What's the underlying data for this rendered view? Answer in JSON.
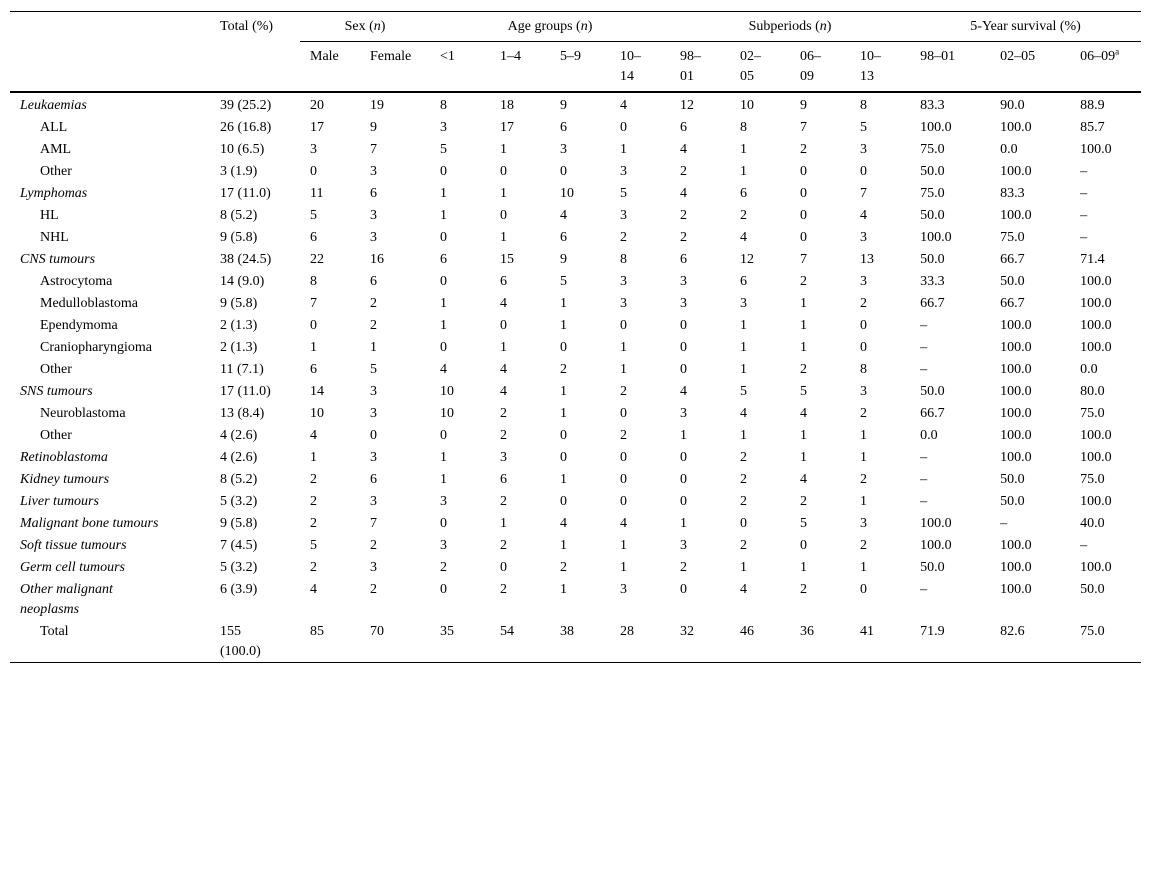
{
  "table": {
    "corner": "",
    "total_header": "Total (%)",
    "groups": [
      {
        "parts": [
          {
            "text": "Sex ("
          },
          {
            "text": "n",
            "italic": true
          },
          {
            "text": ")"
          }
        ],
        "span": 2
      },
      {
        "parts": [
          {
            "text": "Age groups ("
          },
          {
            "text": "n",
            "italic": true
          },
          {
            "text": ")"
          }
        ],
        "span": 4
      },
      {
        "parts": [
          {
            "text": "Subperiods ("
          },
          {
            "text": "n",
            "italic": true
          },
          {
            "text": ")"
          }
        ],
        "span": 4
      },
      {
        "parts": [
          {
            "text": "5-Year survival (%)"
          }
        ],
        "span": 3
      }
    ],
    "subheaders": [
      {
        "text": "Male"
      },
      {
        "text": "Female"
      },
      {
        "text": "<1",
        "narrow": true
      },
      {
        "text": "1–4",
        "narrow": true
      },
      {
        "text": "5–9",
        "narrow": true
      },
      {
        "text": "10–14",
        "narrow": true
      },
      {
        "text": "98–01",
        "narrow": true
      },
      {
        "text": "02–05",
        "narrow": true
      },
      {
        "text": "06–09",
        "narrow": true
      },
      {
        "text": "10–13",
        "narrow": true
      },
      {
        "text": "98–01"
      },
      {
        "text": "02–05"
      },
      {
        "text": "06–09",
        "sup": "a"
      }
    ],
    "rows": [
      {
        "label": "Leukaemias",
        "italic": true,
        "cells": [
          "39 (25.2)",
          "20",
          "19",
          "8",
          "18",
          "9",
          "4",
          "12",
          "10",
          "9",
          "8",
          "83.3",
          "90.0",
          "88.9"
        ]
      },
      {
        "label": "ALL",
        "italic": false,
        "cells": [
          "26 (16.8)",
          "17",
          "9",
          "3",
          "17",
          "6",
          "0",
          "6",
          "8",
          "7",
          "5",
          "100.0",
          "100.0",
          "85.7"
        ]
      },
      {
        "label": "AML",
        "italic": false,
        "cells": [
          "10 (6.5)",
          "3",
          "7",
          "5",
          "1",
          "3",
          "1",
          "4",
          "1",
          "2",
          "3",
          "75.0",
          "0.0",
          "100.0"
        ]
      },
      {
        "label": "Other",
        "italic": false,
        "cells": [
          "3 (1.9)",
          "0",
          "3",
          "0",
          "0",
          "0",
          "3",
          "2",
          "1",
          "0",
          "0",
          "50.0",
          "100.0",
          "–"
        ]
      },
      {
        "label": "Lymphomas",
        "italic": true,
        "cells": [
          "17 (11.0)",
          "11",
          "6",
          "1",
          "1",
          "10",
          "5",
          "4",
          "6",
          "0",
          "7",
          "75.0",
          "83.3",
          "–"
        ]
      },
      {
        "label": "HL",
        "italic": false,
        "cells": [
          "8 (5.2)",
          "5",
          "3",
          "1",
          "0",
          "4",
          "3",
          "2",
          "2",
          "0",
          "4",
          "50.0",
          "100.0",
          "–"
        ]
      },
      {
        "label": "NHL",
        "italic": false,
        "cells": [
          "9 (5.8)",
          "6",
          "3",
          "0",
          "1",
          "6",
          "2",
          "2",
          "4",
          "0",
          "3",
          "100.0",
          "75.0",
          "–"
        ]
      },
      {
        "label": "CNS tumours",
        "italic": true,
        "cells": [
          "38 (24.5)",
          "22",
          "16",
          "6",
          "15",
          "9",
          "8",
          "6",
          "12",
          "7",
          "13",
          "50.0",
          "66.7",
          "71.4"
        ]
      },
      {
        "label": "Astrocytoma",
        "italic": false,
        "cells": [
          "14 (9.0)",
          "8",
          "6",
          "0",
          "6",
          "5",
          "3",
          "3",
          "6",
          "2",
          "3",
          "33.3",
          "50.0",
          "100.0"
        ]
      },
      {
        "label": "Medulloblastoma",
        "italic": false,
        "cells": [
          "9 (5.8)",
          "7",
          "2",
          "1",
          "4",
          "1",
          "3",
          "3",
          "3",
          "1",
          "2",
          "66.7",
          "66.7",
          "100.0"
        ]
      },
      {
        "label": "Ependymoma",
        "italic": false,
        "cells": [
          "2 (1.3)",
          "0",
          "2",
          "1",
          "0",
          "1",
          "0",
          "0",
          "1",
          "1",
          "0",
          "–",
          "100.0",
          "100.0"
        ]
      },
      {
        "label": "Craniopharyngioma",
        "italic": false,
        "cells": [
          "2 (1.3)",
          "1",
          "1",
          "0",
          "1",
          "0",
          "1",
          "0",
          "1",
          "1",
          "0",
          "–",
          "100.0",
          "100.0"
        ]
      },
      {
        "label": "Other",
        "italic": false,
        "cells": [
          "11 (7.1)",
          "6",
          "5",
          "4",
          "4",
          "2",
          "1",
          "0",
          "1",
          "2",
          "8",
          "–",
          "100.0",
          "0.0"
        ]
      },
      {
        "label": "SNS tumours",
        "italic": true,
        "cells": [
          "17 (11.0)",
          "14",
          "3",
          "10",
          "4",
          "1",
          "2",
          "4",
          "5",
          "5",
          "3",
          "50.0",
          "100.0",
          "80.0"
        ]
      },
      {
        "label": "Neuroblastoma",
        "italic": false,
        "cells": [
          "13 (8.4)",
          "10",
          "3",
          "10",
          "2",
          "1",
          "0",
          "3",
          "4",
          "4",
          "2",
          "66.7",
          "100.0",
          "75.0"
        ]
      },
      {
        "label": "Other",
        "italic": false,
        "cells": [
          "4 (2.6)",
          "4",
          "0",
          "0",
          "2",
          "0",
          "2",
          "1",
          "1",
          "1",
          "1",
          "0.0",
          "100.0",
          "100.0"
        ]
      },
      {
        "label": "Retinoblastoma",
        "italic": true,
        "cells": [
          "4 (2.6)",
          "1",
          "3",
          "1",
          "3",
          "0",
          "0",
          "0",
          "2",
          "1",
          "1",
          "–",
          "100.0",
          "100.0"
        ]
      },
      {
        "label": "Kidney tumours",
        "italic": true,
        "cells": [
          "8 (5.2)",
          "2",
          "6",
          "1",
          "6",
          "1",
          "0",
          "0",
          "2",
          "4",
          "2",
          "–",
          "50.0",
          "75.0"
        ]
      },
      {
        "label": "Liver tumours",
        "italic": true,
        "cells": [
          "5 (3.2)",
          "2",
          "3",
          "3",
          "2",
          "0",
          "0",
          "0",
          "2",
          "2",
          "1",
          "–",
          "50.0",
          "100.0"
        ]
      },
      {
        "label": "Malignant bone tumours",
        "italic": true,
        "cells": [
          "9 (5.8)",
          "2",
          "7",
          "0",
          "1",
          "4",
          "4",
          "1",
          "0",
          "5",
          "3",
          "100.0",
          "–",
          "40.0"
        ]
      },
      {
        "label": "Soft tissue tumours",
        "italic": true,
        "cells": [
          "7 (4.5)",
          "5",
          "2",
          "3",
          "2",
          "1",
          "1",
          "3",
          "2",
          "0",
          "2",
          "100.0",
          "100.0",
          "–"
        ]
      },
      {
        "label": "Germ cell tumours",
        "italic": true,
        "cells": [
          "5 (3.2)",
          "2",
          "3",
          "2",
          "0",
          "2",
          "1",
          "2",
          "1",
          "1",
          "1",
          "50.0",
          "100.0",
          "100.0"
        ]
      },
      {
        "label": "Other malignant neoplasms",
        "italic": true,
        "cells": [
          "6 (3.9)",
          "4",
          "2",
          "0",
          "2",
          "1",
          "3",
          "0",
          "4",
          "2",
          "0",
          "–",
          "100.0",
          "50.0"
        ]
      },
      {
        "label": "Total",
        "italic": false,
        "cells": [
          "155 (100.0)",
          "85",
          "70",
          "35",
          "54",
          "38",
          "28",
          "32",
          "46",
          "36",
          "41",
          "71.9",
          "82.6",
          "75.0"
        ]
      }
    ]
  }
}
